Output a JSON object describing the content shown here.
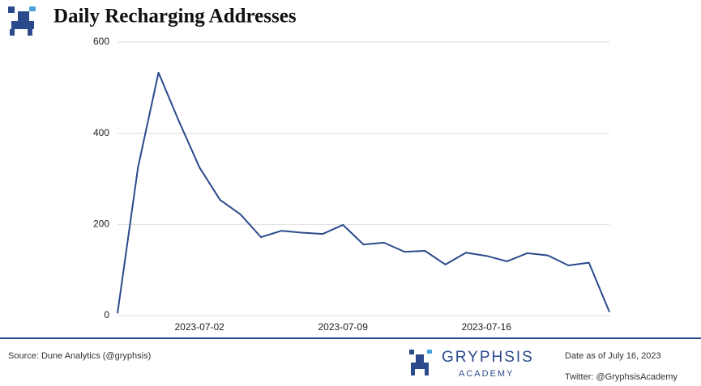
{
  "chart_data": {
    "type": "line",
    "title": "Daily Recharging Addresses",
    "x": [
      "2023-06-28",
      "2023-06-29",
      "2023-06-30",
      "2023-07-01",
      "2023-07-02",
      "2023-07-03",
      "2023-07-04",
      "2023-07-05",
      "2023-07-06",
      "2023-07-07",
      "2023-07-08",
      "2023-07-09",
      "2023-07-10",
      "2023-07-11",
      "2023-07-12",
      "2023-07-13",
      "2023-07-14",
      "2023-07-15",
      "2023-07-16",
      "2023-07-17",
      "2023-07-18",
      "2023-07-19",
      "2023-07-20",
      "2023-07-21",
      "2023-07-22"
    ],
    "series": [
      {
        "color": "#2b4a8b",
        "values": [
          5,
          325,
          533,
          426,
          325,
          254,
          222,
          172,
          186,
          182,
          179,
          199,
          156,
          160,
          140,
          142,
          112,
          138,
          131,
          119,
          137,
          132,
          110,
          116,
          8
        ]
      }
    ],
    "ylim": [
      0,
      600
    ],
    "yticks": [
      0,
      200,
      400,
      600
    ],
    "xticks": [
      "2023-07-02",
      "2023-07-09",
      "2023-07-16"
    ],
    "grid": true
  },
  "footer": {
    "source": "Source: Dune Analytics (@gryphsis)",
    "brand": "GRYPHSIS",
    "brand_sub": "ACADEMY",
    "date_note": "Date as of July 16, 2023",
    "twitter": "Twitter: @GryphsisAcademy"
  }
}
